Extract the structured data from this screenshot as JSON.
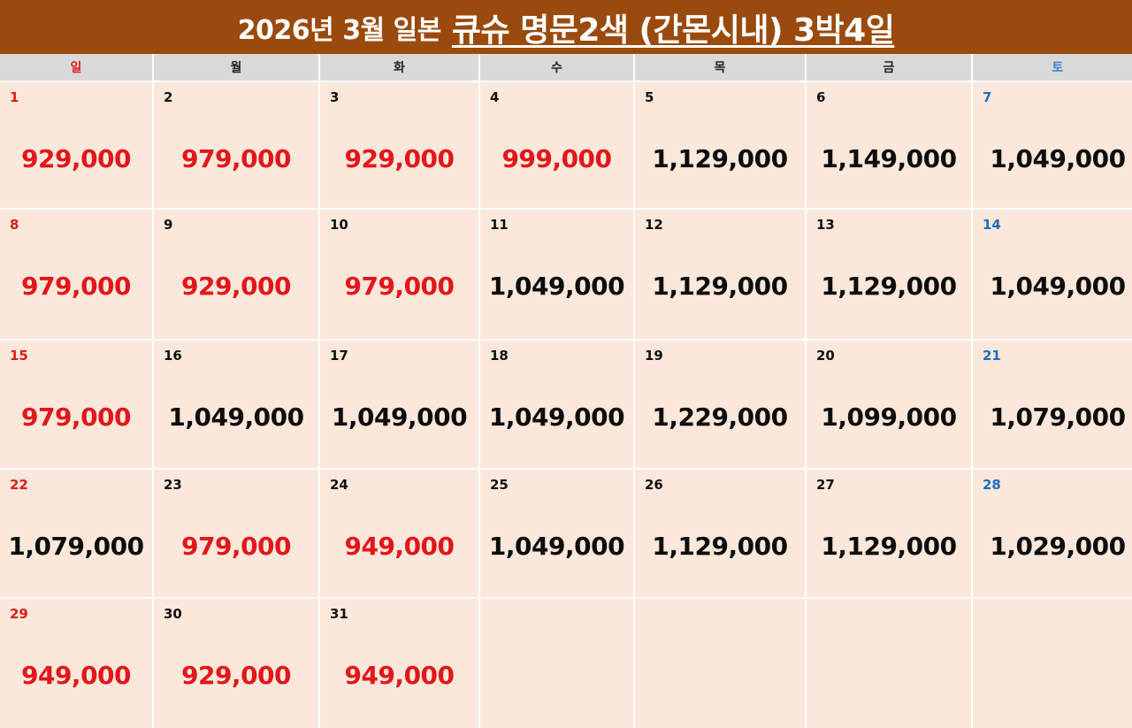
{
  "title": {
    "prefix": "2026년 3월 일본",
    "main": "큐슈 명문2색 (간몬시내) 3박4일"
  },
  "calendar": {
    "weekdays": [
      "일",
      "월",
      "화",
      "수",
      "목",
      "금",
      "토"
    ],
    "weeks": [
      [
        {
          "day": "1",
          "price": "929,000",
          "highlight": true
        },
        {
          "day": "2",
          "price": "979,000",
          "highlight": true
        },
        {
          "day": "3",
          "price": "929,000",
          "highlight": true
        },
        {
          "day": "4",
          "price": "999,000",
          "highlight": true
        },
        {
          "day": "5",
          "price": "1,129,000",
          "highlight": false
        },
        {
          "day": "6",
          "price": "1,149,000",
          "highlight": false
        },
        {
          "day": "7",
          "price": "1,049,000",
          "highlight": false
        }
      ],
      [
        {
          "day": "8",
          "price": "979,000",
          "highlight": true
        },
        {
          "day": "9",
          "price": "929,000",
          "highlight": true
        },
        {
          "day": "10",
          "price": "979,000",
          "highlight": true
        },
        {
          "day": "11",
          "price": "1,049,000",
          "highlight": false
        },
        {
          "day": "12",
          "price": "1,129,000",
          "highlight": false
        },
        {
          "day": "13",
          "price": "1,129,000",
          "highlight": false
        },
        {
          "day": "14",
          "price": "1,049,000",
          "highlight": false
        }
      ],
      [
        {
          "day": "15",
          "price": "979,000",
          "highlight": true
        },
        {
          "day": "16",
          "price": "1,049,000",
          "highlight": false
        },
        {
          "day": "17",
          "price": "1,049,000",
          "highlight": false
        },
        {
          "day": "18",
          "price": "1,049,000",
          "highlight": false
        },
        {
          "day": "19",
          "price": "1,229,000",
          "highlight": false
        },
        {
          "day": "20",
          "price": "1,099,000",
          "highlight": false
        },
        {
          "day": "21",
          "price": "1,079,000",
          "highlight": false
        }
      ],
      [
        {
          "day": "22",
          "price": "1,079,000",
          "highlight": false
        },
        {
          "day": "23",
          "price": "979,000",
          "highlight": true
        },
        {
          "day": "24",
          "price": "949,000",
          "highlight": true
        },
        {
          "day": "25",
          "price": "1,049,000",
          "highlight": false
        },
        {
          "day": "26",
          "price": "1,129,000",
          "highlight": false
        },
        {
          "day": "27",
          "price": "1,129,000",
          "highlight": false
        },
        {
          "day": "28",
          "price": "1,029,000",
          "highlight": false
        }
      ],
      [
        {
          "day": "29",
          "price": "949,000",
          "highlight": true
        },
        {
          "day": "30",
          "price": "929,000",
          "highlight": true
        },
        {
          "day": "31",
          "price": "949,000",
          "highlight": true
        },
        null,
        null,
        null,
        null
      ]
    ]
  },
  "colors": {
    "banner": "#9a4a0c",
    "cell_background": "#fbe8da",
    "highlight_price": "#e3161b",
    "sunday": "#e0191b",
    "saturday": "#1a6ec0"
  }
}
